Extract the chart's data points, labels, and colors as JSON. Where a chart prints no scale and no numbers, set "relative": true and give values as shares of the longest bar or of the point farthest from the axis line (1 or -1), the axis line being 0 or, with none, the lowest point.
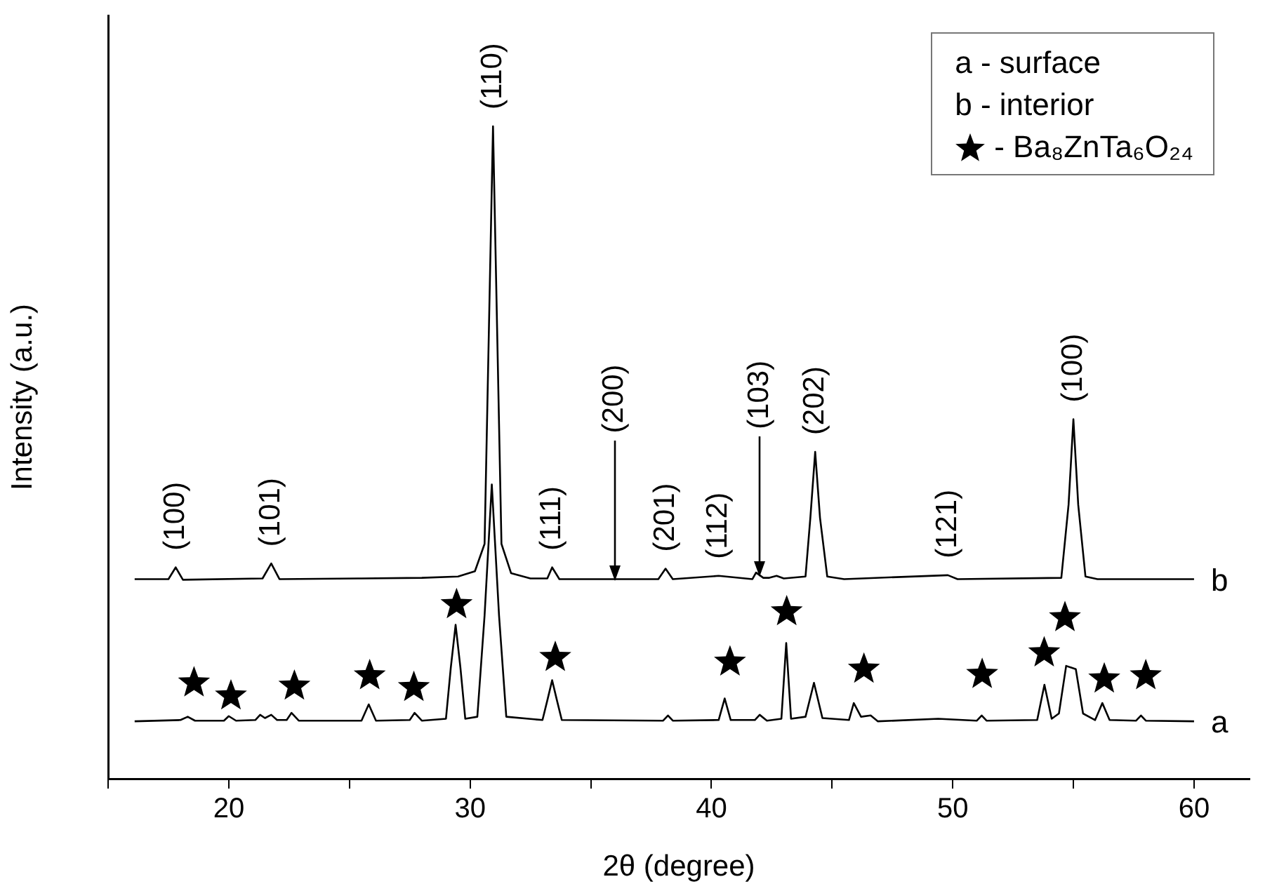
{
  "chart_data": {
    "type": "line",
    "relative": true,
    "xlabel": "2θ (degree)",
    "ylabel": "Intensity (a.u.)",
    "xlim": [
      15,
      62.3
    ],
    "xticks": [
      {
        "value": 15,
        "label": null
      },
      20,
      {
        "value": 25,
        "label": null
      },
      30,
      {
        "value": 35,
        "label": null
      },
      40,
      {
        "value": 45,
        "label": null
      },
      50,
      {
        "value": 55,
        "label": null
      },
      60
    ],
    "grid": false,
    "legend": "top right",
    "series": [
      {
        "name": "b",
        "color": "#000000",
        "x": [
          16.1,
          17.5,
          17.8,
          18.1,
          21.4,
          21.76,
          22.1,
          25.5,
          28.0,
          29.5,
          30.2,
          30.6,
          30.95,
          31.3,
          31.7,
          32.5,
          33.2,
          33.4,
          33.7,
          37.8,
          38.1,
          38.4,
          40.3,
          41.7,
          41.85,
          42.15,
          42.4,
          42.7,
          43.0,
          43.9,
          44.1,
          44.3,
          44.5,
          44.8,
          45.5,
          49.8,
          50.2,
          54.5,
          54.8,
          55.0,
          55.2,
          55.5,
          56.0,
          60.0
        ],
        "values": [
          0.306,
          0.306,
          0.324,
          0.305,
          0.307,
          0.33,
          0.306,
          0.307,
          0.308,
          0.31,
          0.318,
          0.36,
          1.0,
          0.36,
          0.315,
          0.307,
          0.307,
          0.324,
          0.306,
          0.306,
          0.322,
          0.306,
          0.311,
          0.306,
          0.316,
          0.308,
          0.308,
          0.311,
          0.307,
          0.31,
          0.4,
          0.501,
          0.4,
          0.31,
          0.306,
          0.312,
          0.306,
          0.308,
          0.42,
          0.551,
          0.42,
          0.31,
          0.306,
          0.306
        ]
      },
      {
        "name": "a",
        "color": "#000000",
        "x": [
          16.1,
          18.0,
          18.3,
          18.6,
          19.8,
          20.0,
          20.3,
          21.1,
          21.3,
          21.5,
          21.76,
          22.0,
          22.4,
          22.6,
          22.9,
          25.5,
          25.8,
          26.1,
          27.5,
          27.7,
          28.0,
          29.0,
          29.2,
          29.4,
          29.6,
          29.8,
          30.3,
          30.6,
          30.9,
          31.2,
          31.5,
          33.0,
          33.2,
          33.4,
          33.6,
          33.8,
          38.0,
          38.2,
          38.4,
          40.3,
          40.55,
          40.8,
          41.8,
          42.0,
          42.3,
          42.9,
          43.1,
          43.3,
          43.9,
          44.25,
          44.6,
          45.7,
          45.9,
          46.2,
          46.6,
          46.9,
          49.4,
          51.0,
          51.2,
          51.4,
          53.5,
          53.8,
          54.1,
          54.4,
          54.7,
          55.1,
          55.4,
          55.9,
          56.2,
          56.5,
          57.6,
          57.8,
          58.0,
          60.0
        ],
        "values": [
          0.088,
          0.09,
          0.095,
          0.089,
          0.089,
          0.096,
          0.089,
          0.09,
          0.098,
          0.093,
          0.098,
          0.09,
          0.09,
          0.101,
          0.089,
          0.089,
          0.114,
          0.089,
          0.09,
          0.101,
          0.089,
          0.092,
          0.17,
          0.236,
          0.17,
          0.092,
          0.095,
          0.25,
          0.451,
          0.25,
          0.095,
          0.09,
          0.12,
          0.151,
          0.12,
          0.09,
          0.089,
          0.097,
          0.089,
          0.09,
          0.123,
          0.09,
          0.09,
          0.098,
          0.089,
          0.092,
          0.208,
          0.092,
          0.095,
          0.147,
          0.093,
          0.09,
          0.116,
          0.095,
          0.097,
          0.088,
          0.092,
          0.089,
          0.097,
          0.089,
          0.09,
          0.144,
          0.092,
          0.1,
          0.173,
          0.168,
          0.1,
          0.09,
          0.116,
          0.09,
          0.089,
          0.097,
          0.089,
          0.088
        ]
      },
      {
        "name": "- Ba₈ZnTa₆O₂₄",
        "type": "scatter",
        "marker": "star",
        "color": "#000000",
        "x": [
          18.56,
          20.09,
          22.72,
          25.84,
          27.67,
          29.44,
          33.53,
          40.77,
          43.12,
          46.32,
          51.22,
          53.79,
          54.65,
          56.28,
          58.0
        ],
        "values": [
          0.147,
          0.127,
          0.142,
          0.158,
          0.14,
          0.267,
          0.186,
          0.179,
          0.256,
          0.168,
          0.16,
          0.193,
          0.247,
          0.153,
          0.158
        ]
      }
    ],
    "annotations": [
      "a - surface",
      "b - interior",
      {
        "text": "(100)",
        "x": 17.8,
        "y": 0.324
      },
      {
        "text": "(101)",
        "x": 21.76,
        "y": 0.33
      },
      {
        "text": "(110)",
        "x": 30.95,
        "y": 1.0
      },
      {
        "text": "(111)",
        "x": 33.4,
        "y": 0.324
      },
      {
        "text": "(200)",
        "x": 36.0,
        "y": 0.306
      },
      {
        "text": "(201)",
        "x": 38.1,
        "y": 0.322
      },
      {
        "text": "(112)",
        "x": 40.3,
        "y": 0.311
      },
      {
        "text": "(103)",
        "x": 42.0,
        "y": 0.312
      },
      {
        "text": "(202)",
        "x": 44.3,
        "y": 0.501
      },
      {
        "text": "(121)",
        "x": 49.8,
        "y": 0.312
      },
      {
        "text": "(100)",
        "x": 55.0,
        "y": 0.551
      }
    ]
  }
}
